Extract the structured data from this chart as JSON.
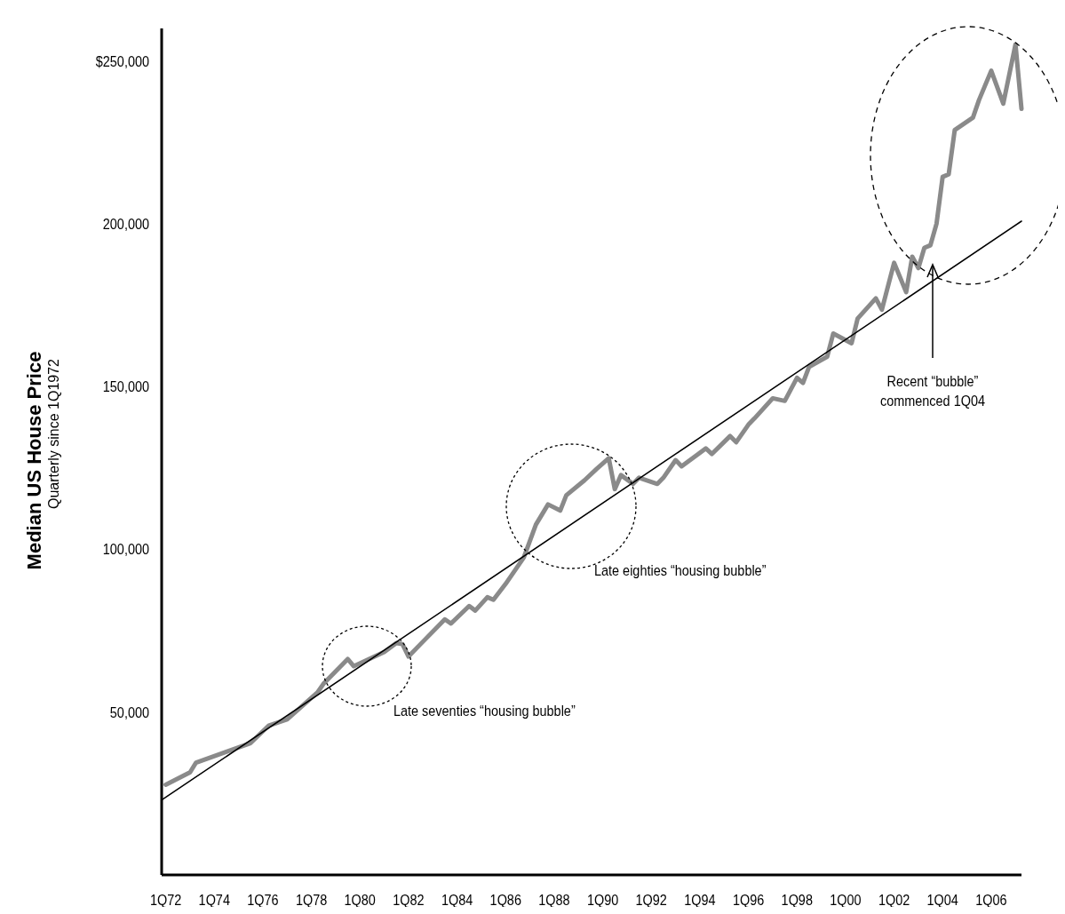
{
  "chart_data": {
    "type": "line",
    "ylabel": "Median US House Price",
    "subtitle": "Quarterly since 1Q1972",
    "xlim": [
      "1971-11",
      "2007-04"
    ],
    "xticks": [
      {
        "value": "1972-01",
        "label": "1Q72"
      },
      {
        "value": "1974-01",
        "label": "1Q74"
      },
      {
        "value": "1976-01",
        "label": "1Q76"
      },
      {
        "value": "1978-01",
        "label": "1Q78"
      },
      {
        "value": "1980-01",
        "label": "1Q80"
      },
      {
        "value": "1982-01",
        "label": "1Q82"
      },
      {
        "value": "1984-01",
        "label": "1Q84"
      },
      {
        "value": "1986-01",
        "label": "1Q86"
      },
      {
        "value": "1988-01",
        "label": "1Q88"
      },
      {
        "value": "1990-01",
        "label": "1Q90"
      },
      {
        "value": "1992-01",
        "label": "1Q92"
      },
      {
        "value": "1994-01",
        "label": "1Q94"
      },
      {
        "value": "1996-01",
        "label": "1Q96"
      },
      {
        "value": "1998-01",
        "label": "1Q98"
      },
      {
        "value": "2000-01",
        "label": "1Q00"
      },
      {
        "value": "2002-01",
        "label": "1Q02"
      },
      {
        "value": "2004-01",
        "label": "1Q04"
      },
      {
        "value": "2006-01",
        "label": "1Q06"
      }
    ],
    "ylim": [
      0,
      260000
    ],
    "yticks": [
      {
        "value": 50000,
        "label": "50,000"
      },
      {
        "value": 100000,
        "label": "100,000"
      },
      {
        "value": 150000,
        "label": "150,000"
      },
      {
        "value": 200000,
        "label": "200,000"
      },
      {
        "value": 250000,
        "label": "$250,000"
      }
    ],
    "marker": "none",
    "line_style": "solid",
    "series": [
      {
        "color": "#8a8a8a",
        "x": [
          "1972-01",
          "1973-01",
          "1973-04",
          "1974-07",
          "1975-07",
          "1976-04",
          "1977-01",
          "1978-04",
          "1978-07",
          "1979-07",
          "1979-10",
          "1981-01",
          "1981-07",
          "1981-10",
          "1982-01",
          "1982-07",
          "1983-07",
          "1983-10",
          "1984-07",
          "1984-10",
          "1985-04",
          "1985-07",
          "1986-01",
          "1986-10",
          "1987-04",
          "1987-10",
          "1988-04",
          "1988-07",
          "1989-04",
          "1989-10",
          "1990-04",
          "1990-07",
          "1990-10",
          "1991-04",
          "1991-07",
          "1992-04",
          "1992-07",
          "1993-01",
          "1993-04",
          "1994-04",
          "1994-07",
          "1995-04",
          "1995-07",
          "1996-01",
          "1996-04",
          "1997-01",
          "1997-07",
          "1998-01",
          "1998-04",
          "1998-07",
          "1999-04",
          "1999-07",
          "2000-04",
          "2000-07",
          "2001-04",
          "2001-07",
          "2002-01",
          "2002-07",
          "2002-10",
          "2003-01",
          "2003-04",
          "2003-07",
          "2003-10",
          "2004-01",
          "2004-04",
          "2004-07",
          "2005-04",
          "2005-07",
          "2006-01",
          "2006-07",
          "2007-01",
          "2007-04"
        ],
        "values": [
          27700,
          31500,
          34500,
          37800,
          40500,
          45900,
          47800,
          56000,
          58700,
          66300,
          64100,
          68500,
          71200,
          70900,
          67100,
          70900,
          78500,
          77200,
          82600,
          81200,
          85300,
          84500,
          89400,
          97500,
          107600,
          113800,
          111900,
          116600,
          121200,
          124700,
          128000,
          118500,
          122800,
          120100,
          122000,
          120100,
          122000,
          127400,
          125500,
          131000,
          129300,
          134800,
          132900,
          138300,
          140200,
          146400,
          145600,
          152700,
          151100,
          156000,
          159200,
          166300,
          163300,
          170900,
          177100,
          173600,
          188000,
          179000,
          189900,
          186400,
          192600,
          193400,
          200000,
          214400,
          215200,
          228800,
          232600,
          238000,
          247000,
          236900,
          255100,
          235300
        ]
      },
      {
        "type": "line",
        "color": "#000000",
        "x": [
          "1971-11",
          "2007-04"
        ],
        "values": [
          23000,
          200800
        ]
      }
    ],
    "annotations": [
      "Late seventies “housing bubble”",
      "Late eighties “housing bubble”",
      "Recent “bubble” commenced 1Q04"
    ]
  }
}
